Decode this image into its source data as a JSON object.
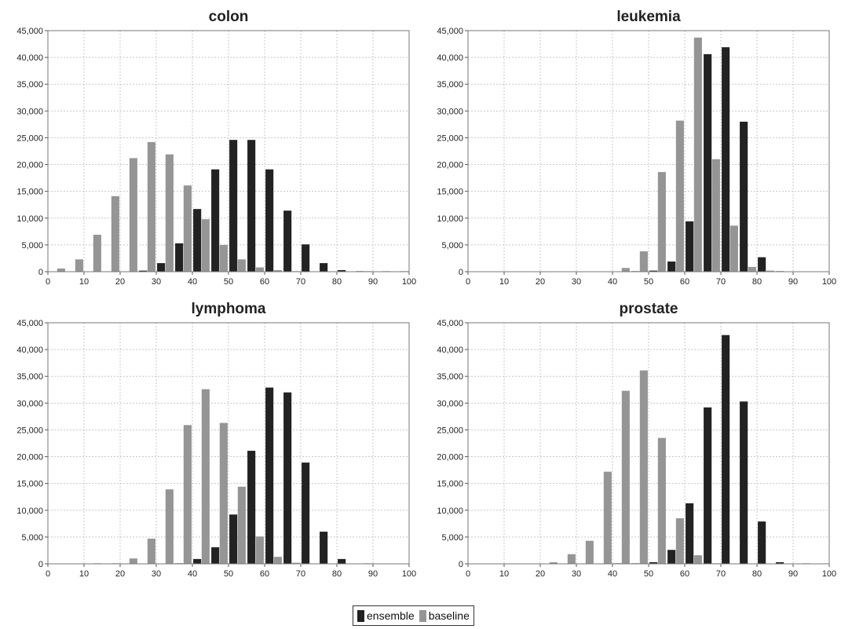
{
  "chart_data": [
    {
      "type": "bar",
      "title": "colon",
      "xlim": [
        0,
        100
      ],
      "ylim": [
        0,
        45000
      ],
      "x_ticks": [
        "0",
        "10",
        "20",
        "30",
        "40",
        "50",
        "60",
        "70",
        "80",
        "90",
        "100"
      ],
      "y_ticks": [
        "0",
        "5,000",
        "10,000",
        "15,000",
        "20,000",
        "25,000",
        "30,000",
        "35,000",
        "40,000",
        "45,000"
      ],
      "x": [
        2.5,
        7.5,
        12.5,
        17.5,
        22.5,
        27.5,
        32.5,
        37.5,
        42.5,
        47.5,
        52.5,
        57.5,
        62.5,
        67.5,
        72.5,
        77.5,
        82.5,
        87.5,
        92.5,
        97.5
      ],
      "series": [
        {
          "name": "ensemble",
          "color": "#222222",
          "values": [
            0,
            0,
            0,
            0,
            0,
            200,
            1600,
            5300,
            11700,
            19100,
            24600,
            24600,
            19100,
            11400,
            5100,
            1600,
            300,
            100,
            0,
            0
          ]
        },
        {
          "name": "baseline",
          "color": "#959595",
          "values": [
            600,
            2300,
            6900,
            14100,
            21200,
            24200,
            21900,
            16100,
            9800,
            5000,
            2300,
            800,
            300,
            100,
            0,
            0,
            0,
            100,
            100,
            100
          ]
        }
      ]
    },
    {
      "type": "bar",
      "title": "leukemia",
      "xlim": [
        0,
        100
      ],
      "ylim": [
        0,
        45000
      ],
      "x_ticks": [
        "0",
        "10",
        "20",
        "30",
        "40",
        "50",
        "60",
        "70",
        "80",
        "90",
        "100"
      ],
      "y_ticks": [
        "0",
        "5,000",
        "10,000",
        "15,000",
        "20,000",
        "25,000",
        "30,000",
        "35,000",
        "40,000",
        "45,000"
      ],
      "x": [
        2.5,
        7.5,
        12.5,
        17.5,
        22.5,
        27.5,
        32.5,
        37.5,
        42.5,
        47.5,
        52.5,
        57.5,
        62.5,
        67.5,
        72.5,
        77.5,
        82.5,
        87.5,
        92.5,
        97.5
      ],
      "series": [
        {
          "name": "ensemble",
          "color": "#222222",
          "values": [
            0,
            0,
            0,
            0,
            0,
            0,
            0,
            0,
            0,
            100,
            200,
            1900,
            9400,
            40600,
            41900,
            28000,
            2700,
            100,
            0,
            0
          ]
        },
        {
          "name": "baseline",
          "color": "#959595",
          "values": [
            0,
            0,
            0,
            0,
            0,
            0,
            0,
            0,
            700,
            3800,
            18600,
            28200,
            43700,
            21000,
            8600,
            900,
            200,
            0,
            0,
            0
          ]
        }
      ]
    },
    {
      "type": "bar",
      "title": "lymphoma",
      "xlim": [
        0,
        100
      ],
      "ylim": [
        0,
        45000
      ],
      "x_ticks": [
        "0",
        "10",
        "20",
        "30",
        "40",
        "50",
        "60",
        "70",
        "80",
        "90",
        "100"
      ],
      "y_ticks": [
        "0",
        "5,000",
        "10,000",
        "15,000",
        "20,000",
        "25,000",
        "30,000",
        "35,000",
        "40,000",
        "45,000"
      ],
      "x": [
        2.5,
        7.5,
        12.5,
        17.5,
        22.5,
        27.5,
        32.5,
        37.5,
        42.5,
        47.5,
        52.5,
        57.5,
        62.5,
        67.5,
        72.5,
        77.5,
        82.5,
        87.5,
        92.5,
        97.5
      ],
      "series": [
        {
          "name": "ensemble",
          "color": "#222222",
          "values": [
            0,
            0,
            0,
            0,
            0,
            0,
            0,
            100,
            900,
            3100,
            9200,
            21100,
            32900,
            32000,
            18900,
            6000,
            900,
            0,
            0,
            0
          ]
        },
        {
          "name": "baseline",
          "color": "#959595",
          "values": [
            0,
            0,
            100,
            100,
            1000,
            4700,
            13900,
            25900,
            32600,
            26300,
            14400,
            5100,
            1300,
            200,
            0,
            0,
            0,
            100,
            0,
            0
          ]
        }
      ]
    },
    {
      "type": "bar",
      "title": "prostate",
      "xlim": [
        0,
        100
      ],
      "ylim": [
        0,
        45000
      ],
      "x_ticks": [
        "0",
        "10",
        "20",
        "30",
        "40",
        "50",
        "60",
        "70",
        "80",
        "90",
        "100"
      ],
      "y_ticks": [
        "0",
        "5,000",
        "10,000",
        "15,000",
        "20,000",
        "25,000",
        "30,000",
        "35,000",
        "40,000",
        "45,000"
      ],
      "x": [
        2.5,
        7.5,
        12.5,
        17.5,
        22.5,
        27.5,
        32.5,
        37.5,
        42.5,
        47.5,
        52.5,
        57.5,
        62.5,
        67.5,
        72.5,
        77.5,
        82.5,
        87.5,
        92.5,
        97.5
      ],
      "series": [
        {
          "name": "ensemble",
          "color": "#222222",
          "values": [
            0,
            0,
            0,
            0,
            0,
            0,
            0,
            0,
            100,
            100,
            300,
            2600,
            11300,
            29200,
            42700,
            30300,
            7900,
            300,
            0,
            0
          ]
        },
        {
          "name": "baseline",
          "color": "#959595",
          "values": [
            0,
            0,
            0,
            0,
            300,
            1800,
            4300,
            17200,
            32300,
            36100,
            23500,
            8500,
            1600,
            100,
            0,
            0,
            0,
            0,
            100,
            0
          ]
        }
      ]
    }
  ],
  "legend": {
    "items": [
      {
        "label": "ensemble",
        "color": "#222222"
      },
      {
        "label": "baseline",
        "color": "#959595"
      }
    ]
  }
}
